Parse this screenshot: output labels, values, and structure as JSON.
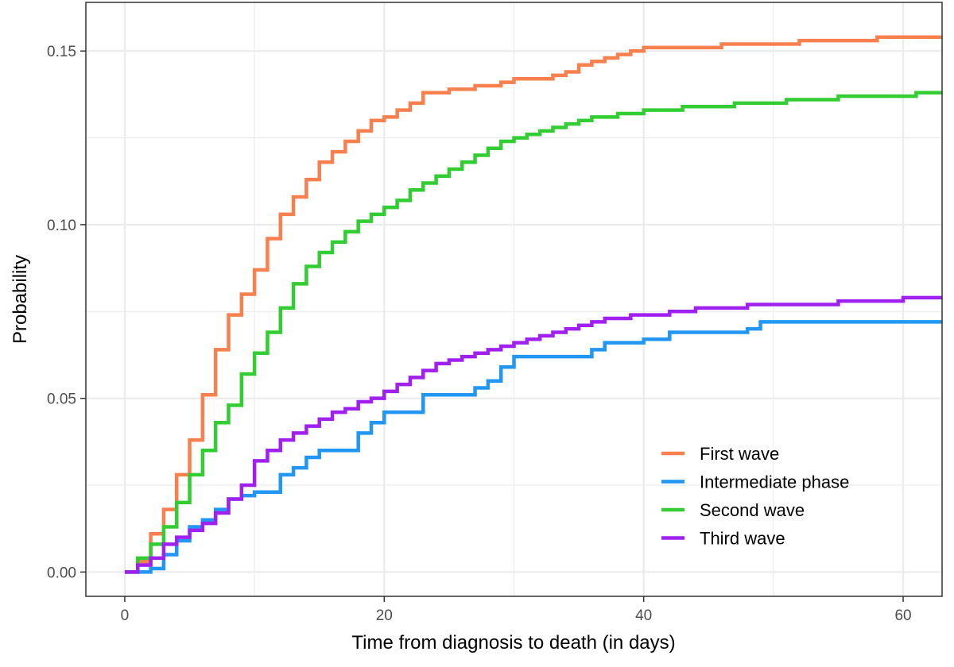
{
  "chart_data": {
    "type": "line",
    "step": true,
    "title": "",
    "xlabel": "Time from diagnosis to death (in days)",
    "ylabel": "Probability",
    "xlim": [
      -3,
      63
    ],
    "ylim": [
      -0.007,
      0.164
    ],
    "x_ticks": [
      0,
      20,
      40,
      60
    ],
    "x_tick_labels": [
      "0",
      "20",
      "40",
      "60"
    ],
    "y_ticks": [
      0.0,
      0.05,
      0.1,
      0.15
    ],
    "y_tick_labels": [
      "0.00",
      "0.05",
      "0.10",
      "0.15"
    ],
    "x_minor_ticks": [
      10,
      30,
      50
    ],
    "y_minor_ticks": [
      0.025,
      0.075,
      0.125
    ],
    "grid": true,
    "legend_position": "bottom-right",
    "series": [
      {
        "name": "First wave",
        "color": "#F8804E",
        "x": [
          0,
          1,
          2,
          3,
          4,
          5,
          6,
          7,
          8,
          9,
          10,
          11,
          12,
          13,
          14,
          15,
          16,
          17,
          18,
          19,
          20,
          21,
          22,
          23,
          25,
          27,
          29,
          30,
          32,
          33,
          34,
          35,
          36,
          37,
          38,
          39,
          40,
          46,
          49,
          52,
          55,
          58,
          63
        ],
        "y": [
          0,
          0.003,
          0.011,
          0.018,
          0.028,
          0.038,
          0.051,
          0.064,
          0.074,
          0.08,
          0.087,
          0.096,
          0.103,
          0.108,
          0.113,
          0.118,
          0.121,
          0.124,
          0.127,
          0.13,
          0.131,
          0.133,
          0.135,
          0.138,
          0.139,
          0.14,
          0.141,
          0.142,
          0.142,
          0.143,
          0.144,
          0.146,
          0.147,
          0.148,
          0.149,
          0.15,
          0.151,
          0.152,
          0.152,
          0.153,
          0.153,
          0.154,
          0.154
        ]
      },
      {
        "name": "Intermediate phase",
        "color": "#2196F3",
        "x": [
          0,
          1,
          2,
          3,
          4,
          5,
          6,
          7,
          8,
          9,
          10,
          12,
          13,
          14,
          15,
          18,
          19,
          20,
          23,
          26,
          27,
          28,
          29,
          30,
          33,
          36,
          37,
          40,
          42,
          48,
          49,
          63
        ],
        "y": [
          0,
          0.0,
          0.001,
          0.005,
          0.009,
          0.013,
          0.015,
          0.018,
          0.021,
          0.022,
          0.023,
          0.028,
          0.03,
          0.033,
          0.035,
          0.04,
          0.043,
          0.046,
          0.051,
          0.051,
          0.053,
          0.055,
          0.059,
          0.062,
          0.062,
          0.064,
          0.066,
          0.067,
          0.069,
          0.07,
          0.072,
          0.072
        ]
      },
      {
        "name": "Second wave",
        "color": "#32CD32",
        "x": [
          0,
          1,
          2,
          3,
          4,
          5,
          6,
          7,
          8,
          9,
          10,
          11,
          12,
          13,
          14,
          15,
          16,
          17,
          18,
          19,
          20,
          21,
          22,
          23,
          24,
          25,
          26,
          27,
          28,
          29,
          30,
          31,
          32,
          33,
          34,
          35,
          36,
          37,
          38,
          39,
          40,
          41,
          43,
          45,
          47,
          49,
          51,
          53,
          55,
          57,
          59,
          61,
          63
        ],
        "y": [
          0,
          0.004,
          0.008,
          0.013,
          0.02,
          0.028,
          0.035,
          0.043,
          0.048,
          0.057,
          0.063,
          0.069,
          0.076,
          0.083,
          0.088,
          0.092,
          0.095,
          0.098,
          0.101,
          0.103,
          0.105,
          0.107,
          0.11,
          0.112,
          0.114,
          0.116,
          0.118,
          0.12,
          0.122,
          0.124,
          0.125,
          0.126,
          0.127,
          0.128,
          0.129,
          0.13,
          0.131,
          0.131,
          0.132,
          0.132,
          0.133,
          0.133,
          0.134,
          0.134,
          0.135,
          0.135,
          0.136,
          0.136,
          0.137,
          0.137,
          0.137,
          0.138,
          0.138
        ]
      },
      {
        "name": "Third wave",
        "color": "#A020F0",
        "x": [
          0,
          1,
          2,
          3,
          4,
          5,
          6,
          7,
          8,
          9,
          10,
          11,
          12,
          13,
          14,
          15,
          16,
          17,
          18,
          19,
          20,
          21,
          22,
          23,
          24,
          25,
          26,
          27,
          28,
          29,
          30,
          31,
          32,
          33,
          34,
          35,
          36,
          37,
          38,
          39,
          40,
          42,
          44,
          46,
          48,
          50,
          55,
          60,
          63
        ],
        "y": [
          0,
          0.002,
          0.004,
          0.008,
          0.01,
          0.012,
          0.014,
          0.017,
          0.021,
          0.025,
          0.032,
          0.035,
          0.038,
          0.04,
          0.042,
          0.044,
          0.046,
          0.047,
          0.049,
          0.05,
          0.052,
          0.054,
          0.056,
          0.058,
          0.06,
          0.061,
          0.062,
          0.063,
          0.064,
          0.065,
          0.066,
          0.067,
          0.068,
          0.069,
          0.07,
          0.071,
          0.072,
          0.073,
          0.073,
          0.074,
          0.074,
          0.075,
          0.076,
          0.076,
          0.077,
          0.077,
          0.078,
          0.079,
          0.079
        ]
      }
    ]
  }
}
